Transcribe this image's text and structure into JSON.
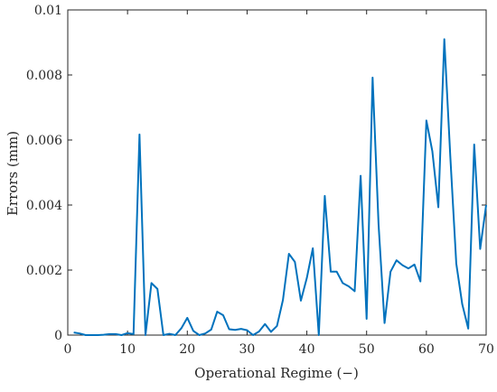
{
  "chart_data": {
    "type": "line",
    "title": "",
    "xlabel": "Operational Regime (−)",
    "ylabel": "Errors (mm)",
    "xlim": [
      0,
      70
    ],
    "ylim": [
      0,
      0.01
    ],
    "grid": true,
    "x_ticks": [
      "0",
      "10",
      "20",
      "30",
      "40",
      "50",
      "60",
      "70"
    ],
    "y_ticks": [
      "0",
      "0.002",
      "0.004",
      "0.006",
      "0.008",
      "0.01"
    ],
    "line_color": "#0072BD",
    "series": [
      {
        "x": [
          1,
          2,
          3,
          4,
          5,
          6,
          7,
          8,
          9,
          10,
          11,
          12,
          13,
          14,
          15,
          16,
          17,
          18,
          19,
          20,
          21,
          22,
          23,
          24,
          25,
          26,
          27,
          28,
          29,
          30,
          31,
          32,
          33,
          34,
          35,
          36,
          37,
          38,
          39,
          40,
          41,
          42,
          43,
          44,
          45,
          46,
          47,
          48,
          49,
          50,
          51,
          52,
          53,
          54,
          55,
          56,
          57,
          58,
          59,
          60,
          61,
          62,
          63,
          64,
          65,
          66,
          67,
          68,
          69,
          70
        ],
        "values": [
          8e-05,
          5e-05,
          0.0,
          0.0,
          0.0,
          1e-05,
          3e-05,
          3e-05,
          0.0,
          6e-05,
          3e-05,
          0.00617,
          0.0,
          0.0016,
          0.00142,
          0.0,
          4e-05,
          0.0,
          0.00021,
          0.00053,
          0.00013,
          0.0,
          5e-05,
          0.00017,
          0.00072,
          0.00061,
          0.00018,
          0.00016,
          0.00019,
          0.00015,
          0.0,
          0.00011,
          0.00034,
          0.0001,
          0.00028,
          0.00108,
          0.0025,
          0.00225,
          0.00106,
          0.00176,
          0.00267,
          0.0,
          0.00428,
          0.00195,
          0.00195,
          0.0016,
          0.0015,
          0.00135,
          0.0049,
          0.0005,
          0.00792,
          0.0034,
          0.00037,
          0.00195,
          0.0023,
          0.00215,
          0.00205,
          0.00217,
          0.00165,
          0.0066,
          0.00565,
          0.00393,
          0.0091,
          0.0055,
          0.0022,
          0.00095,
          0.0002,
          0.00586,
          0.00265,
          0.004
        ]
      }
    ]
  }
}
